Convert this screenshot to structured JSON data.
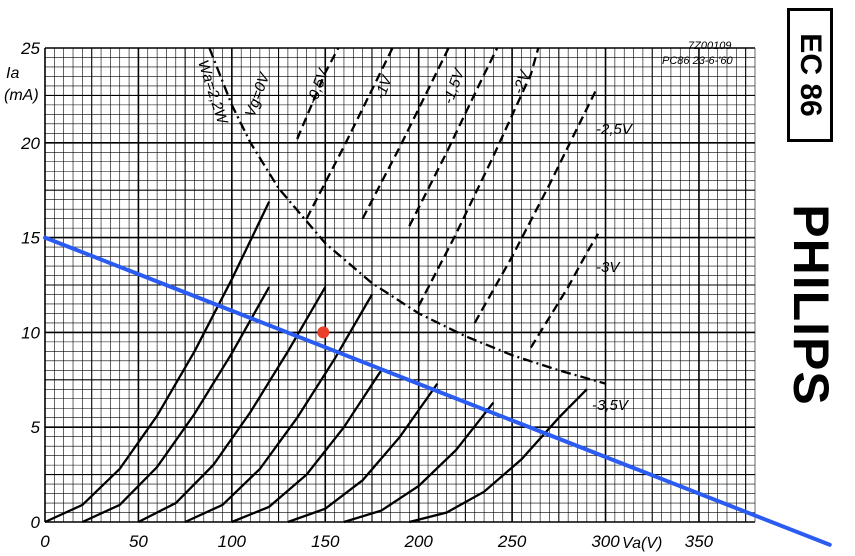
{
  "chart_data": {
    "type": "line",
    "title": "",
    "xlabel": "Va(V)",
    "ylabel": "Ia\n(mA)",
    "xlim": [
      0,
      380
    ],
    "ylim": [
      0,
      25
    ],
    "x_ticks": [
      "0",
      "50",
      "100",
      "150",
      "200",
      "250",
      "300",
      "350"
    ],
    "y_ticks": [
      "0",
      "5",
      "10",
      "15",
      "20",
      "25"
    ],
    "x_tick_values": [
      0,
      50,
      100,
      150,
      200,
      250,
      300,
      350
    ],
    "y_tick_values": [
      0,
      5,
      10,
      15,
      20,
      25
    ],
    "grid": true,
    "reference": [
      "7Z00109",
      "PC86  23-6-'60"
    ],
    "series": [
      {
        "name": "Vg=0V",
        "style": "solid-dashed",
        "points": [
          [
            0,
            0
          ],
          [
            20,
            0.9
          ],
          [
            40,
            2.8
          ],
          [
            60,
            5.6
          ],
          [
            80,
            9.0
          ],
          [
            100,
            12.8
          ],
          [
            120,
            16.9
          ],
          [
            135,
            20.2
          ],
          [
            150,
            23.7
          ],
          [
            157,
            25
          ]
        ]
      },
      {
        "name": "-0,5V",
        "style": "solid-dashed",
        "points": [
          [
            20,
            0
          ],
          [
            40,
            0.9
          ],
          [
            60,
            2.9
          ],
          [
            80,
            5.7
          ],
          [
            100,
            8.9
          ],
          [
            120,
            12.4
          ],
          [
            140,
            16.0
          ],
          [
            160,
            19.8
          ],
          [
            180,
            23.8
          ],
          [
            186,
            25
          ]
        ]
      },
      {
        "name": "-1V",
        "style": "solid-dashed",
        "points": [
          [
            50,
            0
          ],
          [
            70,
            1.0
          ],
          [
            90,
            3.0
          ],
          [
            110,
            5.8
          ],
          [
            130,
            9.0
          ],
          [
            150,
            12.4
          ],
          [
            170,
            16.0
          ],
          [
            190,
            19.8
          ],
          [
            210,
            23.8
          ],
          [
            216,
            25
          ]
        ]
      },
      {
        "name": "-1,5V",
        "style": "solid-dashed",
        "points": [
          [
            75,
            0
          ],
          [
            95,
            0.9
          ],
          [
            115,
            2.8
          ],
          [
            135,
            5.5
          ],
          [
            155,
            8.6
          ],
          [
            175,
            12.0
          ],
          [
            195,
            15.6
          ],
          [
            215,
            19.5
          ],
          [
            235,
            23.6
          ],
          [
            242,
            25
          ]
        ]
      },
      {
        "name": "-2V",
        "style": "solid-dashed",
        "points": [
          [
            100,
            0
          ],
          [
            120,
            0.8
          ],
          [
            140,
            2.5
          ],
          [
            160,
            5.0
          ],
          [
            180,
            8.0
          ],
          [
            200,
            11.4
          ],
          [
            220,
            15.2
          ],
          [
            240,
            19.3
          ],
          [
            260,
            23.6
          ],
          [
            264,
            25
          ]
        ]
      },
      {
        "name": "-2,5V",
        "style": "solid-dashed",
        "points": [
          [
            130,
            0
          ],
          [
            150,
            0.7
          ],
          [
            170,
            2.2
          ],
          [
            190,
            4.5
          ],
          [
            210,
            7.3
          ],
          [
            230,
            10.5
          ],
          [
            250,
            14.0
          ],
          [
            270,
            17.8
          ],
          [
            290,
            21.8
          ],
          [
            295,
            22.8
          ]
        ]
      },
      {
        "name": "-3V",
        "style": "solid-dashed",
        "points": [
          [
            160,
            0
          ],
          [
            180,
            0.6
          ],
          [
            200,
            1.9
          ],
          [
            220,
            3.8
          ],
          [
            240,
            6.3
          ],
          [
            260,
            9.2
          ],
          [
            280,
            12.4
          ],
          [
            290,
            14.2
          ],
          [
            296,
            15.2
          ]
        ]
      },
      {
        "name": "-3,5V",
        "style": "solid",
        "points": [
          [
            195,
            0
          ],
          [
            215,
            0.5
          ],
          [
            235,
            1.6
          ],
          [
            255,
            3.3
          ],
          [
            275,
            5.5
          ],
          [
            290,
            7.0
          ]
        ]
      }
    ],
    "dissipation_curve": {
      "name": "Wa=2,2W",
      "style": "dash-dot",
      "points": [
        [
          88,
          25
        ],
        [
          100,
          22.0
        ],
        [
          110,
          20.0
        ],
        [
          125,
          17.6
        ],
        [
          150,
          14.7
        ],
        [
          175,
          12.6
        ],
        [
          200,
          11.0
        ],
        [
          225,
          9.8
        ],
        [
          250,
          8.8
        ],
        [
          275,
          8.0
        ],
        [
          300,
          7.3
        ]
      ]
    },
    "load_line": {
      "color": "#2a5cf2",
      "points": [
        [
          0,
          15.0
        ],
        [
          420,
          -1.2
        ]
      ]
    },
    "operating_point": {
      "x": 150,
      "y": 10.0,
      "color": "#e8402a"
    }
  },
  "brand": {
    "model": "EC 86",
    "logo": "PHILIPS"
  }
}
